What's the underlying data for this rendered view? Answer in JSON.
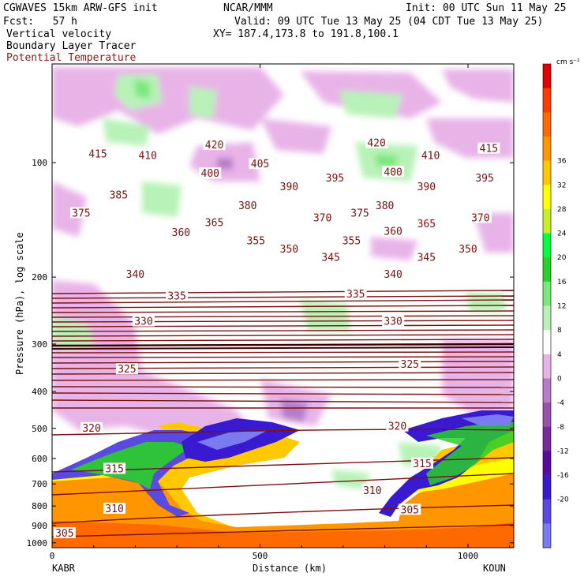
{
  "header": {
    "model": "CGWAVES 15km ARW-GFS init",
    "org": "NCAR/MMM",
    "init": "Init: 00 UTC Sun 11 May 25",
    "fcst": "Fcst:   57 h",
    "valid": "Valid: 09 UTC Tue 13 May 25 (04 CDT Tue 13 May 25)",
    "field1": "Vertical velocity",
    "field2": "Boundary Layer Tracer",
    "field3": "Potential Temperature",
    "xy": "XY= 187.4,173.8 to 191.8,100.1"
  },
  "colors": {
    "theta": "#7a1010",
    "field3_text": "#8b1a1a"
  },
  "chart_data": {
    "type": "cross-section",
    "xlabel": "Distance (km)",
    "ylabel": "Pressure (hPa), log scale",
    "xlim": [
      0,
      1110
    ],
    "ylim": [
      1030,
      55
    ],
    "yscale": "log",
    "x_ticks": [
      0,
      500,
      1000
    ],
    "x_tick_labels": [
      "0",
      "500",
      "1000"
    ],
    "y_ticks": [
      100,
      200,
      300,
      400,
      500,
      600,
      700,
      800,
      900,
      1000
    ],
    "y_tick_labels": [
      "100",
      "200",
      "300",
      "400",
      "500",
      "600",
      "700",
      "800",
      "900",
      "1000"
    ],
    "left_station": "KABR",
    "right_station": "KOUN",
    "colorbar": {
      "units": "cm s⁻¹",
      "levels": [
        -20,
        -16,
        -12,
        -8,
        -4,
        0,
        4,
        8,
        12,
        16,
        20,
        24,
        28,
        32,
        36
      ],
      "labels": [
        "-20",
        "-16",
        "-12",
        "-8",
        "-4",
        "0",
        "4",
        "8",
        "12",
        "16",
        "20",
        "24",
        "28",
        "32",
        "36"
      ],
      "colors": [
        "#7b7bf0",
        "#5a4ae0",
        "#3a1ad0",
        "#5a0a9a",
        "#7a2a9a",
        "#9a50b0",
        "#b77bc8",
        "#e8b4e8",
        "#ffffff",
        "#b8f2b8",
        "#7ae87a",
        "#2ad02a",
        "#00ff40",
        "#c8f02a",
        "#ffff00",
        "#ffc800",
        "#ff9600",
        "#ff6a00",
        "#ff3c00",
        "#e60000"
      ]
    },
    "theta_levels": [
      {
        "value": "305",
        "x": 30,
        "p": 945
      },
      {
        "value": "310",
        "x": 150,
        "p": 815
      },
      {
        "value": "310",
        "x": 770,
        "p": 730
      },
      {
        "value": "305",
        "x": 860,
        "p": 820
      },
      {
        "value": "315",
        "x": 150,
        "p": 640
      },
      {
        "value": "315",
        "x": 890,
        "p": 620
      },
      {
        "value": "320",
        "x": 95,
        "p": 500
      },
      {
        "value": "320",
        "x": 830,
        "p": 495
      },
      {
        "value": "325",
        "x": 180,
        "p": 350
      },
      {
        "value": "325",
        "x": 860,
        "p": 340
      },
      {
        "value": "330",
        "x": 220,
        "p": 262
      },
      {
        "value": "330",
        "x": 820,
        "p": 262
      },
      {
        "value": "335",
        "x": 300,
        "p": 225
      },
      {
        "value": "335",
        "x": 730,
        "p": 222
      },
      {
        "value": "340",
        "x": 200,
        "p": 197
      },
      {
        "value": "340",
        "x": 820,
        "p": 197
      },
      {
        "value": "345",
        "x": 670,
        "p": 178
      },
      {
        "value": "345",
        "x": 900,
        "p": 178
      },
      {
        "value": "350",
        "x": 570,
        "p": 169
      },
      {
        "value": "350",
        "x": 1000,
        "p": 169
      },
      {
        "value": "355",
        "x": 490,
        "p": 161
      },
      {
        "value": "355",
        "x": 720,
        "p": 161
      },
      {
        "value": "360",
        "x": 310,
        "p": 153
      },
      {
        "value": "360",
        "x": 820,
        "p": 152
      },
      {
        "value": "365",
        "x": 390,
        "p": 144
      },
      {
        "value": "365",
        "x": 900,
        "p": 145
      },
      {
        "value": "370",
        "x": 650,
        "p": 140
      },
      {
        "value": "370",
        "x": 1030,
        "p": 140
      },
      {
        "value": "375",
        "x": 70,
        "p": 136
      },
      {
        "value": "375",
        "x": 740,
        "p": 136
      },
      {
        "value": "380",
        "x": 470,
        "p": 130
      },
      {
        "value": "380",
        "x": 800,
        "p": 130
      },
      {
        "value": "385",
        "x": 160,
        "p": 122
      },
      {
        "value": "390",
        "x": 570,
        "p": 116
      },
      {
        "value": "390",
        "x": 900,
        "p": 116
      },
      {
        "value": "395",
        "x": 680,
        "p": 110
      },
      {
        "value": "395",
        "x": 1040,
        "p": 110
      },
      {
        "value": "400",
        "x": 380,
        "p": 107
      },
      {
        "value": "400",
        "x": 820,
        "p": 106
      },
      {
        "value": "405",
        "x": 500,
        "p": 101
      },
      {
        "value": "410",
        "x": 230,
        "p": 96
      },
      {
        "value": "410",
        "x": 910,
        "p": 96
      },
      {
        "value": "415",
        "x": 110,
        "p": 95
      },
      {
        "value": "415",
        "x": 1050,
        "p": 92
      },
      {
        "value": "420",
        "x": 390,
        "p": 90
      },
      {
        "value": "420",
        "x": 780,
        "p": 89
      }
    ]
  }
}
